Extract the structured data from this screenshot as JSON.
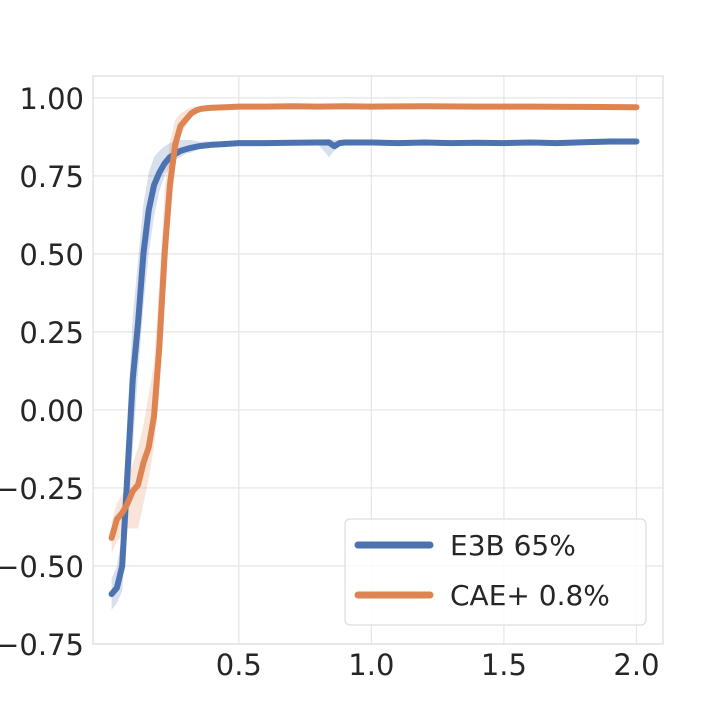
{
  "chart_data": {
    "type": "line",
    "title": "",
    "xlabel": "",
    "ylabel": "",
    "xlim": [
      -0.05,
      2.1
    ],
    "ylim": [
      -0.75,
      1.07
    ],
    "xticks": [
      0.5,
      1.0,
      1.5,
      2.0
    ],
    "xtick_labels": [
      "0.5",
      "1.0",
      "1.5",
      "2.0"
    ],
    "yticks": [
      -0.75,
      -0.5,
      -0.25,
      0.0,
      0.25,
      0.5,
      0.75,
      1.0
    ],
    "ytick_labels": [
      "−0.75",
      "−0.50",
      "−0.25",
      "0.00",
      "0.25",
      "0.50",
      "0.75",
      "1.00"
    ],
    "grid": true,
    "legend_position": "lower-right",
    "series": [
      {
        "name": "E3B 65%",
        "color": "#4C72B0",
        "x": [
          0.02,
          0.04,
          0.06,
          0.08,
          0.1,
          0.12,
          0.14,
          0.16,
          0.18,
          0.2,
          0.22,
          0.24,
          0.26,
          0.28,
          0.3,
          0.32,
          0.35,
          0.4,
          0.45,
          0.5,
          0.6,
          0.7,
          0.8,
          0.84,
          0.86,
          0.88,
          0.9,
          1.0,
          1.1,
          1.2,
          1.3,
          1.4,
          1.5,
          1.6,
          1.7,
          1.8,
          1.9,
          2.0
        ],
        "y": [
          -0.59,
          -0.57,
          -0.5,
          -0.2,
          0.1,
          0.28,
          0.5,
          0.64,
          0.72,
          0.76,
          0.79,
          0.81,
          0.82,
          0.83,
          0.835,
          0.84,
          0.845,
          0.85,
          0.852,
          0.855,
          0.855,
          0.856,
          0.857,
          0.857,
          0.845,
          0.855,
          0.857,
          0.857,
          0.855,
          0.857,
          0.855,
          0.856,
          0.855,
          0.857,
          0.855,
          0.858,
          0.86,
          0.86
        ],
        "band_lower": [
          -0.64,
          -0.62,
          -0.58,
          -0.38,
          -0.12,
          0.12,
          0.33,
          0.5,
          0.62,
          0.7,
          0.75,
          0.78,
          0.8,
          0.81,
          0.82,
          0.825,
          0.835,
          0.84,
          0.845,
          0.848,
          0.85,
          0.85,
          0.85,
          0.81,
          0.83,
          0.845,
          0.85,
          0.85,
          0.85,
          0.85,
          0.85,
          0.85,
          0.85,
          0.85,
          0.85,
          0.85,
          0.85,
          0.85
        ],
        "band_upper": [
          -0.54,
          -0.5,
          -0.4,
          -0.02,
          0.3,
          0.48,
          0.66,
          0.76,
          0.81,
          0.83,
          0.845,
          0.855,
          0.86,
          0.865,
          0.865,
          0.865,
          0.86,
          0.86,
          0.86,
          0.862,
          0.862,
          0.863,
          0.866,
          0.868,
          0.865,
          0.866,
          0.865,
          0.864,
          0.862,
          0.864,
          0.862,
          0.863,
          0.862,
          0.864,
          0.862,
          0.865,
          0.868,
          0.868
        ]
      },
      {
        "name": "CAE+ 0.8%",
        "color": "#DD8452",
        "x": [
          0.02,
          0.04,
          0.06,
          0.08,
          0.1,
          0.12,
          0.14,
          0.16,
          0.18,
          0.2,
          0.22,
          0.24,
          0.26,
          0.28,
          0.3,
          0.32,
          0.34,
          0.36,
          0.38,
          0.4,
          0.45,
          0.5,
          0.6,
          0.7,
          0.8,
          0.9,
          1.0,
          1.2,
          1.4,
          1.6,
          1.8,
          2.0
        ],
        "y": [
          -0.41,
          -0.35,
          -0.33,
          -0.3,
          -0.26,
          -0.24,
          -0.17,
          -0.12,
          -0.02,
          0.2,
          0.5,
          0.72,
          0.85,
          0.91,
          0.93,
          0.95,
          0.96,
          0.965,
          0.967,
          0.968,
          0.97,
          0.972,
          0.972,
          0.973,
          0.972,
          0.973,
          0.972,
          0.973,
          0.972,
          0.972,
          0.971,
          0.97
        ],
        "band_lower": [
          -0.46,
          -0.42,
          -0.4,
          -0.38,
          -0.38,
          -0.38,
          -0.3,
          -0.22,
          -0.12,
          0.05,
          0.33,
          0.6,
          0.78,
          0.88,
          0.91,
          0.94,
          0.955,
          0.96,
          0.962,
          0.963,
          0.965,
          0.968,
          0.968,
          0.969,
          0.968,
          0.969,
          0.968,
          0.969,
          0.968,
          0.968,
          0.967,
          0.966
        ],
        "band_upper": [
          -0.36,
          -0.3,
          -0.27,
          -0.24,
          -0.17,
          -0.12,
          -0.05,
          0.05,
          0.15,
          0.4,
          0.7,
          0.86,
          0.93,
          0.95,
          0.96,
          0.97,
          0.972,
          0.975,
          0.976,
          0.976,
          0.977,
          0.978,
          0.978,
          0.979,
          0.978,
          0.979,
          0.978,
          0.979,
          0.978,
          0.978,
          0.977,
          0.976
        ]
      }
    ]
  }
}
